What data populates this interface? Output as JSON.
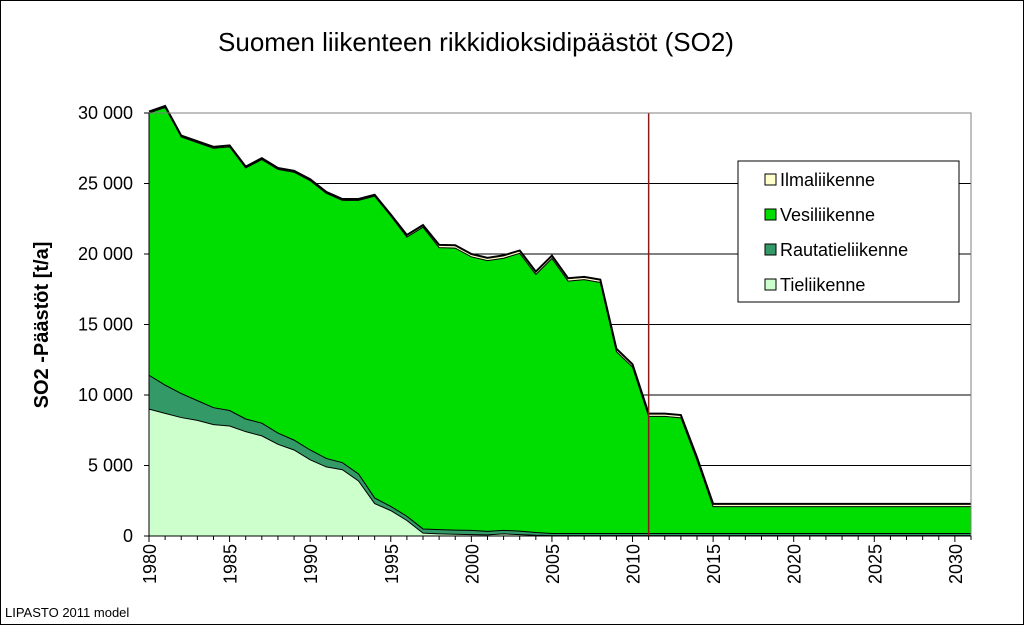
{
  "footer": {
    "credit": "LIPASTO 2011 model"
  },
  "chart_data": {
    "type": "area",
    "stacked": true,
    "title": "Suomen liikenteen rikkidioksidipäästöt (SO2)",
    "xlabel": "",
    "ylabel": "SO2 -Päästöt [t/a]",
    "xlim": [
      1980,
      2031
    ],
    "ylim": [
      0,
      30000
    ],
    "x_ticks": [
      1980,
      1985,
      1990,
      1995,
      2000,
      2005,
      2010,
      2015,
      2020,
      2025,
      2030
    ],
    "y_ticks": [
      0,
      5000,
      10000,
      15000,
      20000,
      25000,
      30000
    ],
    "y_tick_labels": [
      "0",
      "5 000",
      "10 000",
      "15 000",
      "20 000",
      "25 000",
      "30 000"
    ],
    "grid": "horizontal",
    "legend_position": "right",
    "reference_line": {
      "x": 2011,
      "color": "#8b1a1a"
    },
    "x": [
      1980,
      1981,
      1982,
      1983,
      1984,
      1985,
      1986,
      1987,
      1988,
      1989,
      1990,
      1991,
      1992,
      1993,
      1994,
      1995,
      1996,
      1997,
      1998,
      1999,
      2000,
      2001,
      2002,
      2003,
      2004,
      2005,
      2006,
      2007,
      2008,
      2009,
      2010,
      2011,
      2012,
      2013,
      2014,
      2015,
      2016,
      2017,
      2018,
      2019,
      2020,
      2021,
      2022,
      2023,
      2024,
      2025,
      2026,
      2027,
      2028,
      2029,
      2030,
      2031
    ],
    "series": [
      {
        "name": "Tieliikenne",
        "color": "#ccffcc",
        "values": [
          9000,
          8700,
          8400,
          8200,
          7900,
          7800,
          7400,
          7100,
          6500,
          6100,
          5400,
          4900,
          4700,
          3900,
          2300,
          1800,
          1100,
          200,
          150,
          120,
          100,
          80,
          150,
          100,
          50,
          30,
          30,
          30,
          30,
          30,
          30,
          30,
          30,
          30,
          30,
          30,
          30,
          30,
          30,
          30,
          30,
          30,
          30,
          30,
          30,
          30,
          30,
          30,
          30,
          30,
          30,
          30
        ]
      },
      {
        "name": "Rautatieliikenne",
        "color": "#339966",
        "values": [
          2400,
          2000,
          1700,
          1400,
          1200,
          1100,
          900,
          900,
          800,
          700,
          700,
          600,
          500,
          500,
          400,
          300,
          300,
          300,
          300,
          300,
          300,
          250,
          250,
          250,
          200,
          150,
          150,
          150,
          150,
          150,
          150,
          150,
          150,
          150,
          150,
          150,
          150,
          150,
          150,
          150,
          150,
          150,
          150,
          150,
          150,
          150,
          150,
          150,
          150,
          150,
          150,
          150
        ]
      },
      {
        "name": "Vesiliikenne",
        "color": "#00dd00",
        "values": [
          18600,
          19700,
          18200,
          18300,
          18400,
          18700,
          17800,
          18700,
          18700,
          19000,
          19100,
          18800,
          18600,
          19400,
          21400,
          20600,
          19800,
          21400,
          20000,
          20000,
          19400,
          19200,
          19300,
          19700,
          18300,
          19500,
          17900,
          18000,
          17800,
          12900,
          11800,
          8300,
          8300,
          8200,
          5200,
          1900,
          1900,
          1900,
          1900,
          1900,
          1900,
          1900,
          1900,
          1900,
          1900,
          1900,
          1900,
          1900,
          1900,
          1900,
          1900,
          1900
        ]
      },
      {
        "name": "Ilmaliikenne",
        "color": "#ffffcc",
        "values": [
          100,
          100,
          100,
          100,
          100,
          100,
          100,
          100,
          100,
          100,
          100,
          100,
          100,
          100,
          100,
          100,
          150,
          150,
          200,
          200,
          200,
          200,
          200,
          200,
          200,
          200,
          200,
          200,
          200,
          200,
          200,
          200,
          200,
          200,
          200,
          200,
          200,
          200,
          200,
          200,
          200,
          200,
          200,
          200,
          200,
          200,
          200,
          200,
          200,
          200,
          200,
          200
        ]
      }
    ]
  }
}
